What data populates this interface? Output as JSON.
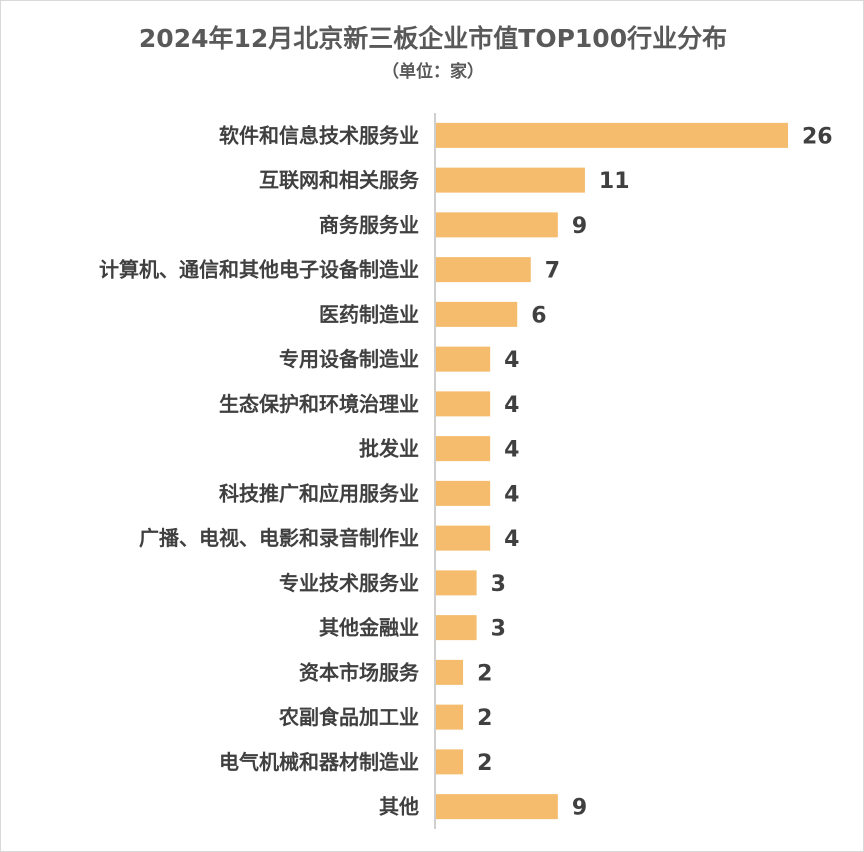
{
  "chart_data": {
    "type": "bar",
    "orientation": "horizontal",
    "title": "2024年12月北京新三板企业市值TOP100行业分布",
    "subtitle": "（单位：家）",
    "categories": [
      "软件和信息技术服务业",
      "互联网和相关服务",
      "商务服务业",
      "计算机、通信和其他电子设备制造业",
      "医药制造业",
      "专用设备制造业",
      "生态保护和环境治理业",
      "批发业",
      "科技推广和应用服务业",
      "广播、电视、电影和录音制作业",
      "专业技术服务业",
      "其他金融业",
      "资本市场服务",
      "农副食品加工业",
      "电气机械和器材制造业",
      "其他"
    ],
    "values": [
      26,
      11,
      9,
      7,
      6,
      4,
      4,
      4,
      4,
      4,
      3,
      3,
      2,
      2,
      2,
      9
    ],
    "xlim": [
      0,
      26
    ],
    "grid": false,
    "legend": "none",
    "bar_color": "#F4BC6C",
    "axis_color": "#BFBFBF",
    "label_color": "#404040"
  }
}
